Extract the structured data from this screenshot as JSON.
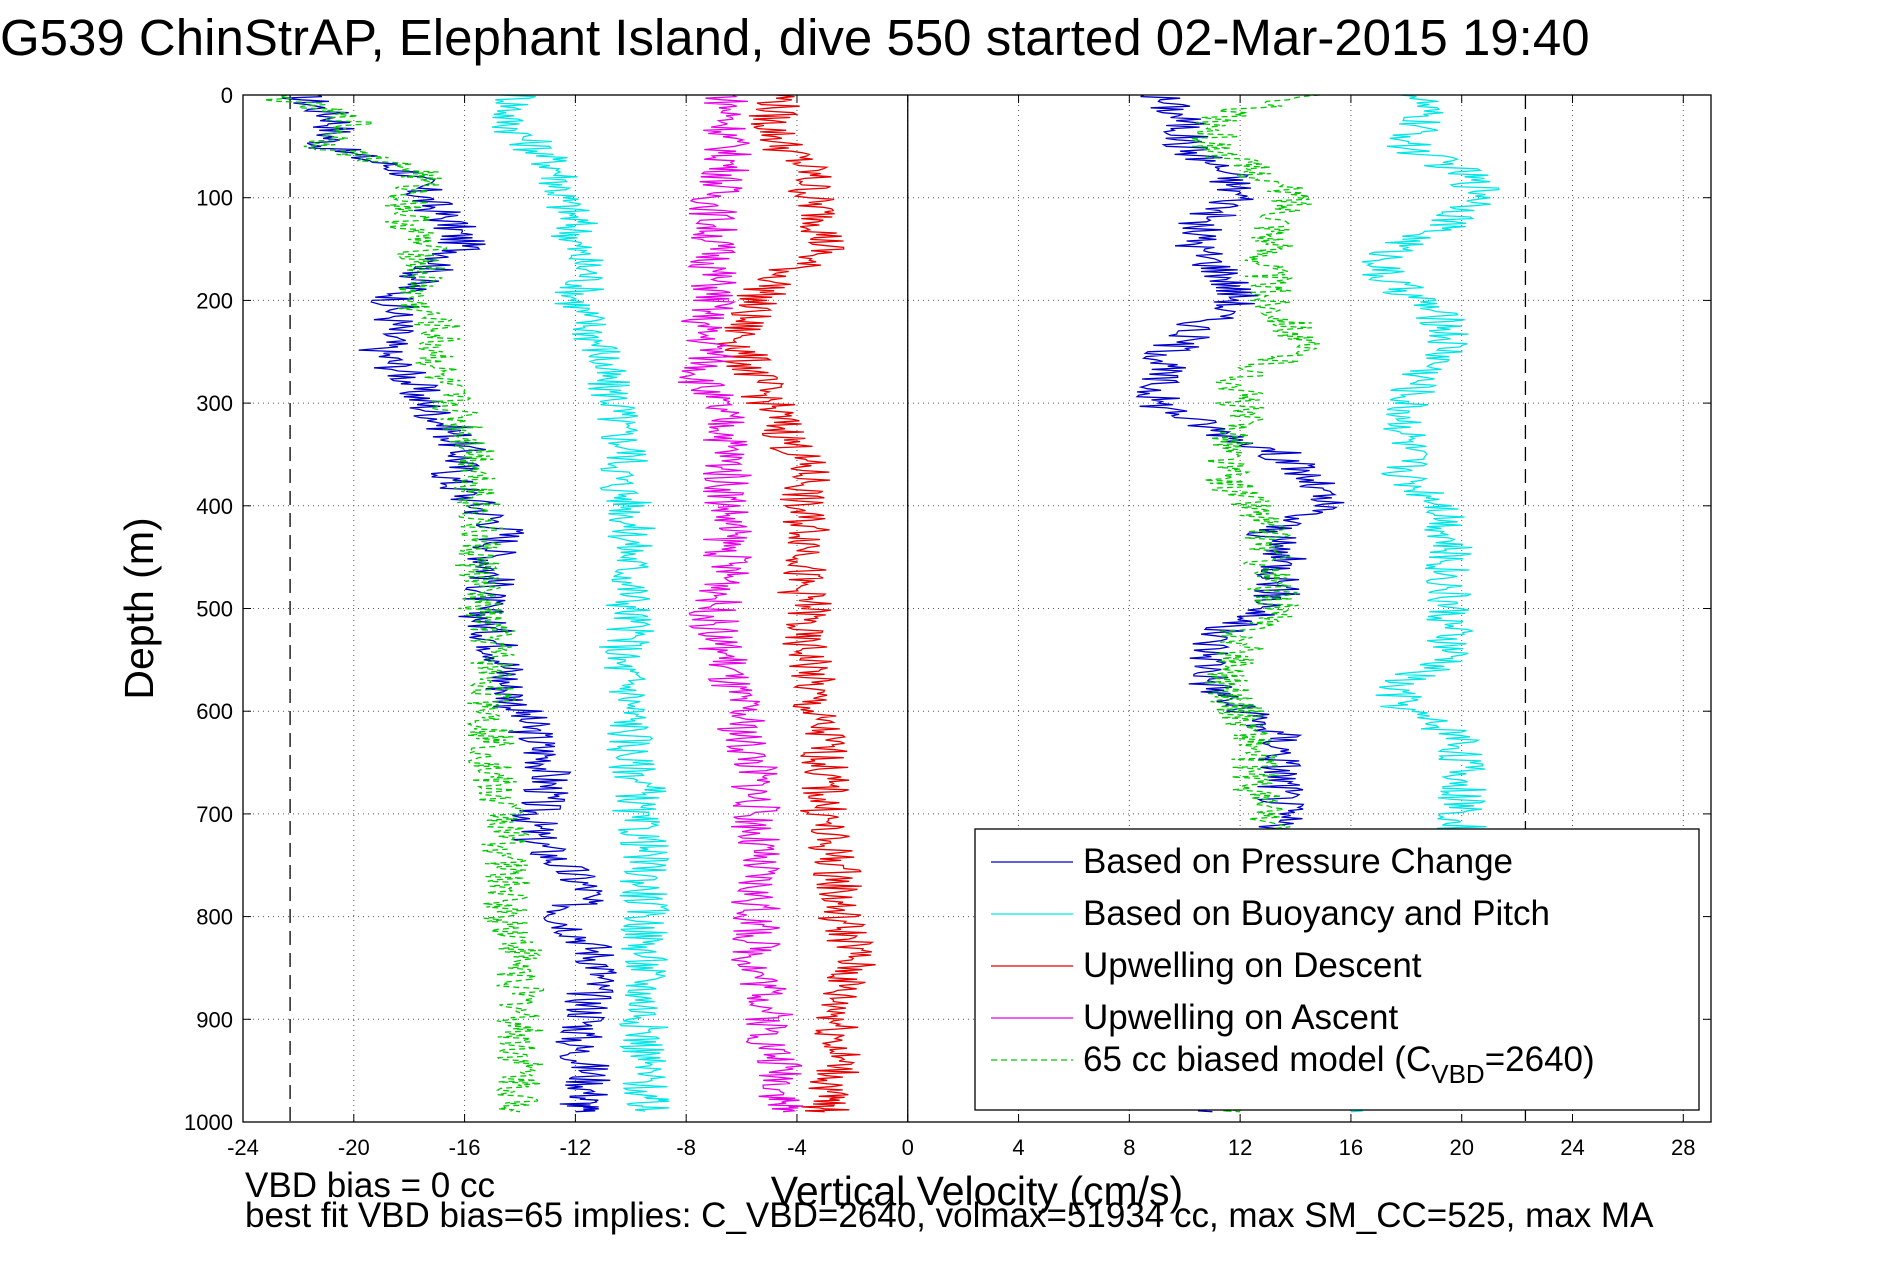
{
  "title": "G539 ChinStrAP, Elephant Island, dive 550 started 02-Mar-2015 19:40",
  "footer": {
    "line1": "VBD bias = 0 cc",
    "line2": "best fit VBD bias=65 implies: C_VBD=2640, volmax=51934 cc, max SM_CC=525, max MA"
  },
  "chart_data": {
    "type": "line",
    "xlabel": "Vertical Velocity (cm/s)",
    "ylabel": "Depth (m)",
    "xlim": [
      -24,
      29
    ],
    "ylim": [
      1000,
      0
    ],
    "y_reversed": true,
    "grid": true,
    "legend_position": "bottom-right",
    "xticks": [
      "-24",
      "-20",
      "-16",
      "-12",
      "-8",
      "-4",
      "0",
      "4",
      "8",
      "12",
      "16",
      "20",
      "24",
      "28"
    ],
    "yticks": [
      "0",
      "100",
      "200",
      "300",
      "400",
      "500",
      "600",
      "700",
      "800",
      "900",
      "1000"
    ],
    "reference_lines": [
      {
        "x": 0,
        "style": "solid"
      },
      {
        "x": -22.3,
        "style": "dashed"
      },
      {
        "x": 22.3,
        "style": "dashed"
      }
    ],
    "depth": [
      0,
      25,
      50,
      75,
      100,
      125,
      150,
      175,
      200,
      225,
      250,
      275,
      300,
      325,
      350,
      375,
      400,
      425,
      450,
      475,
      500,
      525,
      550,
      575,
      600,
      625,
      650,
      675,
      700,
      725,
      750,
      775,
      800,
      825,
      850,
      875,
      900,
      925,
      950,
      975,
      990
    ],
    "series": [
      {
        "name": "Based on Pressure Change",
        "color": "#0000c8",
        "x": [
          -22,
          -20.5,
          -21,
          -18,
          -17.5,
          -16.5,
          -16,
          -17.5,
          -18.5,
          -18.5,
          -19,
          -18,
          -17.5,
          -16.5,
          -16,
          -16.5,
          -15.5,
          -14.5,
          -15,
          -15,
          -15.5,
          -15,
          -14.5,
          -14.5,
          -14,
          -13.5,
          -13,
          -13,
          -13.5,
          -13.5,
          -12.5,
          -11.5,
          -12.5,
          -11.5,
          -11,
          -11.5,
          -11.5,
          -12,
          -11.5,
          -11.5,
          -12
        ]
      },
      {
        "name": "Based on Buoyancy and Pitch",
        "color": "#00e6e6",
        "x": [
          -14,
          -14.5,
          -13.5,
          -12.5,
          -12.5,
          -12,
          -12,
          -11.5,
          -12,
          -11.5,
          -11,
          -11,
          -10.5,
          -10.5,
          -10,
          -10.5,
          -10,
          -10,
          -10,
          -10,
          -10,
          -10,
          -10.5,
          -10,
          -10,
          -10,
          -10,
          -9.5,
          -10,
          -9.5,
          -9.5,
          -9.5,
          -9.5,
          -9.5,
          -9.5,
          -9.5,
          -9.5,
          -9.5,
          -9.5,
          -9.5,
          -9.5
        ]
      },
      {
        "name": "Upwelling on Descent",
        "color": "#e60000",
        "x": [
          -4.5,
          -5,
          -4.5,
          -3.5,
          -3.5,
          -3,
          -3,
          -4.5,
          -5.5,
          -6,
          -6,
          -5.5,
          -5,
          -4.5,
          -4,
          -3.5,
          -4,
          -3.5,
          -3.5,
          -4,
          -3.5,
          -4,
          -3.5,
          -3.5,
          -3.5,
          -3,
          -3,
          -3,
          -3,
          -3,
          -2.5,
          -2.5,
          -2.5,
          -2,
          -2,
          -2.5,
          -2.5,
          -2.5,
          -2.5,
          -3,
          -3
        ]
      },
      {
        "name": "Upwelling on Ascent",
        "color": "#e600e6",
        "x": [
          -6.5,
          -6.5,
          -6.5,
          -6.5,
          -7,
          -7,
          -7,
          -7,
          -7,
          -7.5,
          -7,
          -7.5,
          -7,
          -6.5,
          -6.5,
          -6.5,
          -6.5,
          -6.5,
          -6.5,
          -6.5,
          -7,
          -7,
          -6.5,
          -6.5,
          -6,
          -6,
          -5.5,
          -5.5,
          -5.5,
          -5.5,
          -5.5,
          -5.5,
          -5.5,
          -5.5,
          -5.5,
          -5,
          -5,
          -5,
          -4.5,
          -4.5,
          -4.5
        ]
      },
      {
        "name": "65 cc biased model (C",
        "subscript": "VBD",
        "suffix": "=2640)",
        "color": "#00c800",
        "dashed": true,
        "x": [
          -23,
          -20,
          -21,
          -17.5,
          -18,
          -18,
          -17.5,
          -17.5,
          -18,
          -17,
          -17,
          -17,
          -16.5,
          -16,
          -15.5,
          -15.5,
          -15.5,
          -15.5,
          -15.5,
          -15.5,
          -15.5,
          -15,
          -15,
          -15,
          -15,
          -15,
          -15,
          -15,
          -14.5,
          -14.5,
          -14.5,
          -14.5,
          -14.5,
          -14,
          -14,
          -14,
          -14,
          -14,
          -14,
          -14,
          -14
        ]
      }
    ],
    "ascent_series": [
      {
        "color": "#0000c8",
        "x": [
          9,
          10,
          10,
          11.5,
          12,
          10.5,
          10.5,
          11.5,
          12,
          10.5,
          9.5,
          9,
          9,
          11,
          13.5,
          14.5,
          15,
          13,
          13.5,
          13.5,
          13,
          11,
          11,
          11,
          12,
          13.5,
          13.5,
          13.5,
          13.5,
          13.5,
          14,
          14.5,
          14.5,
          14.5,
          14.5,
          14.5,
          14.5,
          14.5,
          14.5,
          14.5,
          11
        ]
      },
      {
        "color": "#00e6e6",
        "x": [
          18.5,
          18.5,
          18,
          20,
          21,
          19.5,
          17.5,
          17,
          18.5,
          19.5,
          19.5,
          18.5,
          18,
          18,
          18,
          18,
          19.5,
          19.5,
          19.5,
          19.5,
          19.5,
          19.5,
          19.5,
          17.5,
          18,
          20,
          20,
          20,
          20,
          20,
          20,
          20,
          20,
          20,
          20,
          20,
          20,
          20,
          20,
          20,
          16
        ]
      },
      {
        "color": "#00c800",
        "x": [
          14,
          11,
          11,
          12.5,
          14,
          13.5,
          13,
          13,
          13,
          14,
          14,
          12,
          12,
          12,
          11.5,
          11.5,
          12.5,
          13,
          13,
          13,
          13.5,
          12,
          12,
          11.5,
          12,
          12.5,
          12.5,
          12.5,
          13,
          13,
          13,
          13,
          13,
          13,
          13,
          13,
          13,
          13,
          13,
          13,
          12
        ]
      }
    ]
  }
}
